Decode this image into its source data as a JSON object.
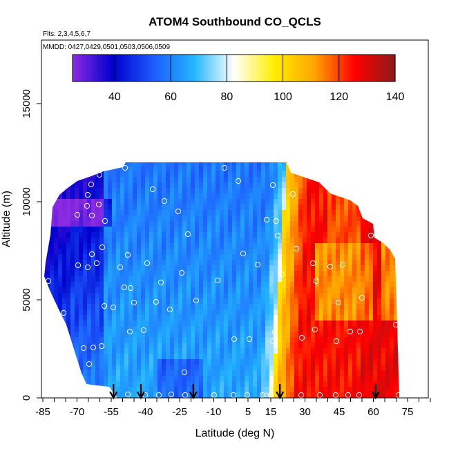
{
  "chart_data": {
    "type": "heatmap",
    "title": "ATOM4 Southbound CO_QCLS",
    "subtitle_flights": "Flts: 2,3,4,5,6,7",
    "subtitle_dates": "MMDD: 0427,0429,0501,0503,0506,0509",
    "xlabel": "Latitude (deg N)",
    "ylabel": "Altitude (m)",
    "xlim": [
      -88,
      85
    ],
    "ylim": [
      0,
      17500
    ],
    "x_tick_labels": [
      "-85",
      "-70",
      "-55",
      "-40",
      "-25",
      "-10",
      "5",
      "15",
      "30",
      "45",
      "60",
      "75"
    ],
    "x_tick_values": [
      -85,
      -70,
      -55,
      -40,
      -25,
      -10,
      5,
      15,
      30,
      45,
      60,
      75
    ],
    "y_tick_labels": [
      "0",
      "5000",
      "10000",
      "15000"
    ],
    "y_tick_values": [
      0,
      5000,
      10000,
      15000
    ],
    "colorbar": {
      "range": [
        25,
        140
      ],
      "tick_labels": [
        "40",
        "60",
        "80",
        "100",
        "120",
        "140"
      ],
      "tick_values": [
        40,
        60,
        80,
        100,
        120,
        140
      ],
      "colors": [
        "#8a2be2",
        "#0000cd",
        "#1e5bff",
        "#22b5ff",
        "#ffffff",
        "#ffee00",
        "#ffa500",
        "#ff0000",
        "#8b1a1a"
      ]
    },
    "profile_latitudes": [
      -54,
      -42,
      -19,
      19,
      61
    ],
    "field_summary": "CO mixing ratio (ppb) by latitude and altitude: ~40-50 in southern upper troposphere, ~55-70 over southern/tropical mid-latitudes, sharp gradient near 15-20N to 110-135 ppb in the northern hemisphere"
  }
}
